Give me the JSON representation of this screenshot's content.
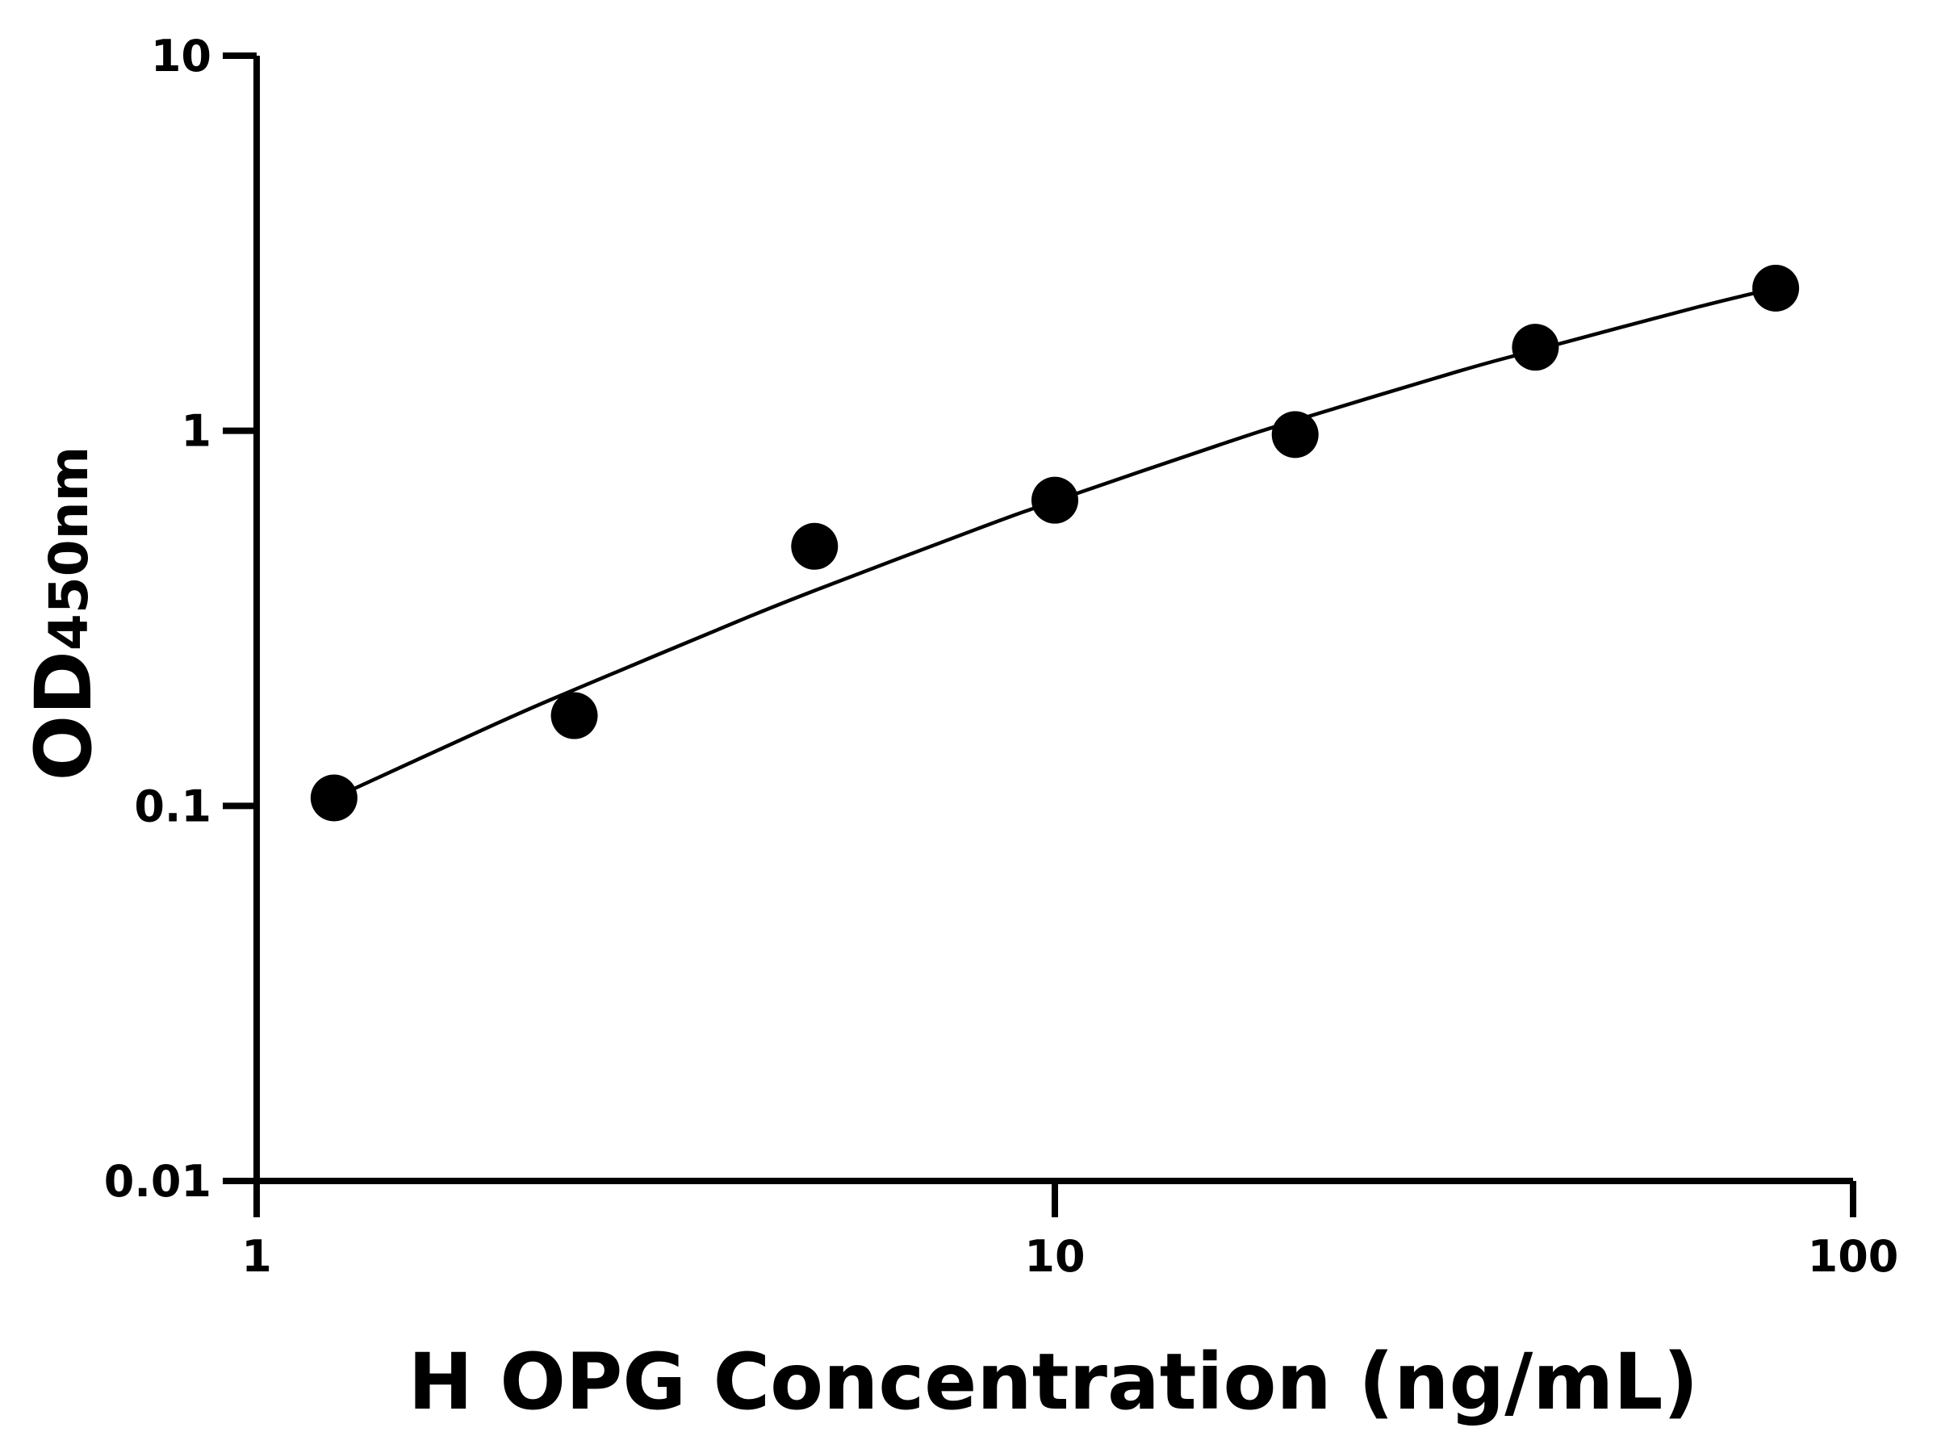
{
  "chart_data": {
    "type": "scatter",
    "title": "",
    "xlabel": "H OPG Concentration (ng/mL)",
    "ylabel_main": "OD",
    "ylabel_sub": "450nm",
    "x_scale": "log",
    "y_scale": "log",
    "xlim": [
      1,
      100
    ],
    "ylim": [
      0.01,
      10
    ],
    "x_ticks": [
      1,
      10,
      100
    ],
    "x_tick_labels": [
      "1",
      "10",
      "100"
    ],
    "y_ticks": [
      0.01,
      0.1,
      1,
      10
    ],
    "y_tick_labels": [
      "0.01",
      "0.1",
      "1",
      "10"
    ],
    "grid": false,
    "legend": "none",
    "marker_color": "#000000",
    "line_color": "#000000",
    "points": {
      "x": [
        1.25,
        2.5,
        5,
        10,
        20,
        40,
        80
      ],
      "y": [
        0.105,
        0.174,
        0.492,
        0.653,
        0.977,
        1.67,
        2.4
      ]
    },
    "fit_curve": {
      "x": [
        1.25,
        2,
        2.5,
        4,
        5,
        8,
        10,
        16,
        20,
        32,
        40,
        64,
        80
      ],
      "y": [
        0.105,
        0.166,
        0.204,
        0.31,
        0.375,
        0.548,
        0.65,
        0.914,
        1.065,
        1.44,
        1.64,
        2.14,
        2.4
      ]
    }
  }
}
